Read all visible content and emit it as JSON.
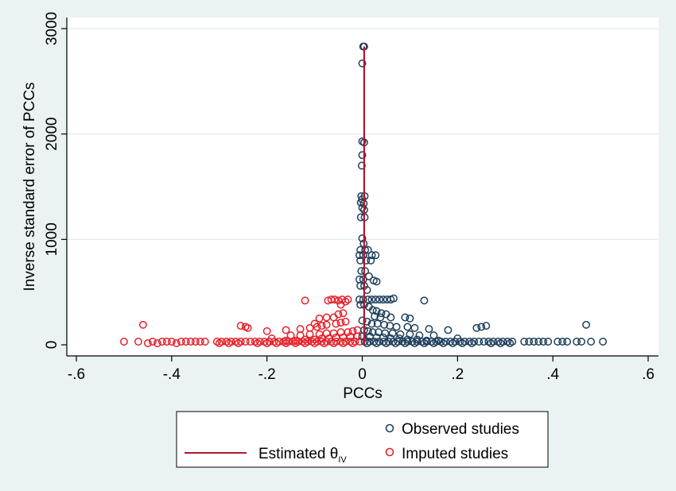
{
  "chart_data": {
    "type": "scatter",
    "title": "",
    "xlabel": "PCCs",
    "ylabel": "Inverse standard error of PCCs",
    "xlim": [
      -0.6,
      0.6
    ],
    "ylim": [
      0,
      3000
    ],
    "x_ticks": [
      -0.6,
      -0.4,
      -0.2,
      0,
      0.2,
      0.4,
      0.6
    ],
    "x_tick_labels": [
      "-.6",
      "-.4",
      "-.2",
      "0",
      ".2",
      ".4",
      ".6"
    ],
    "y_ticks": [
      0,
      1000,
      2000,
      3000
    ],
    "y_tick_labels": [
      "0",
      "1000",
      "2000",
      "3000"
    ],
    "grid": "horizontal",
    "legend_position": "bottom",
    "estimate_line": {
      "name": "Estimated θ",
      "subscript": "IV",
      "x": 0.004,
      "y_range": [
        0,
        2830
      ],
      "color": "#b0192f"
    },
    "series": [
      {
        "name": "Observed studies",
        "color": "#1f3f5b",
        "marker": "hollow-circle",
        "points": [
          [
            0.002,
            2830
          ],
          [
            0.004,
            2830
          ],
          [
            0.0,
            2670
          ],
          [
            0.0,
            1930
          ],
          [
            0.004,
            1920
          ],
          [
            0.0,
            1800
          ],
          [
            -0.001,
            1700
          ],
          [
            -0.002,
            1410
          ],
          [
            0.005,
            1410
          ],
          [
            0.0,
            1380
          ],
          [
            -0.003,
            1350
          ],
          [
            0.003,
            1340
          ],
          [
            0.0,
            1300
          ],
          [
            0.004,
            1280
          ],
          [
            -0.003,
            1210
          ],
          [
            0.005,
            1210
          ],
          [
            0.0,
            1010
          ],
          [
            0.003,
            960
          ],
          [
            -0.004,
            900
          ],
          [
            0.006,
            900
          ],
          [
            0.012,
            900
          ],
          [
            -0.006,
            850
          ],
          [
            0.002,
            850
          ],
          [
            0.02,
            850
          ],
          [
            0.028,
            850
          ],
          [
            -0.004,
            800
          ],
          [
            0.008,
            800
          ],
          [
            0.018,
            800
          ],
          [
            -0.002,
            700
          ],
          [
            0.006,
            700
          ],
          [
            0.014,
            650
          ],
          [
            -0.006,
            620
          ],
          [
            0.002,
            620
          ],
          [
            0.024,
            610
          ],
          [
            0.03,
            600
          ],
          [
            -0.004,
            560
          ],
          [
            0.004,
            560
          ],
          [
            0.01,
            520
          ],
          [
            -0.006,
            430
          ],
          [
            0.002,
            430
          ],
          [
            0.012,
            430
          ],
          [
            0.02,
            430
          ],
          [
            0.028,
            430
          ],
          [
            0.036,
            430
          ],
          [
            0.044,
            430
          ],
          [
            0.052,
            430
          ],
          [
            0.06,
            430
          ],
          [
            0.066,
            440
          ],
          [
            0.13,
            420
          ],
          [
            -0.004,
            380
          ],
          [
            0.004,
            380
          ],
          [
            0.014,
            360
          ],
          [
            0.022,
            330
          ],
          [
            0.03,
            320
          ],
          [
            0.04,
            300
          ],
          [
            0.05,
            290
          ],
          [
            0.026,
            270
          ],
          [
            0.038,
            260
          ],
          [
            0.06,
            260
          ],
          [
            0.09,
            260
          ],
          [
            0.1,
            250
          ],
          [
            0.0,
            230
          ],
          [
            0.01,
            220
          ],
          [
            0.02,
            200
          ],
          [
            0.032,
            200
          ],
          [
            0.046,
            190
          ],
          [
            0.058,
            180
          ],
          [
            0.072,
            170
          ],
          [
            0.095,
            170
          ],
          [
            0.11,
            160
          ],
          [
            0.14,
            150
          ],
          [
            0.18,
            140
          ],
          [
            0.24,
            160
          ],
          [
            0.25,
            170
          ],
          [
            0.26,
            180
          ],
          [
            0.47,
            190
          ],
          [
            0.004,
            140
          ],
          [
            0.012,
            130
          ],
          [
            0.022,
            120
          ],
          [
            0.034,
            120
          ],
          [
            0.048,
            110
          ],
          [
            0.064,
            110
          ],
          [
            0.08,
            100
          ],
          [
            0.1,
            100
          ],
          [
            0.12,
            90
          ],
          [
            0.15,
            90
          ],
          [
            0.0,
            80
          ],
          [
            0.016,
            80
          ],
          [
            0.03,
            70
          ],
          [
            0.044,
            70
          ],
          [
            0.06,
            60
          ],
          [
            0.078,
            60
          ],
          [
            0.095,
            50
          ],
          [
            0.115,
            50
          ],
          [
            0.135,
            40
          ],
          [
            0.16,
            40
          ],
          [
            0.2,
            60
          ],
          [
            0.005,
            30
          ],
          [
            0.015,
            30
          ],
          [
            0.025,
            30
          ],
          [
            0.035,
            30
          ],
          [
            0.045,
            30
          ],
          [
            0.055,
            30
          ],
          [
            0.065,
            30
          ],
          [
            0.075,
            30
          ],
          [
            0.085,
            30
          ],
          [
            0.095,
            30
          ],
          [
            0.105,
            30
          ],
          [
            0.115,
            30
          ],
          [
            0.125,
            30
          ],
          [
            0.135,
            30
          ],
          [
            0.145,
            30
          ],
          [
            0.155,
            30
          ],
          [
            0.165,
            30
          ],
          [
            0.175,
            30
          ],
          [
            0.185,
            30
          ],
          [
            0.195,
            30
          ],
          [
            0.205,
            30
          ],
          [
            0.215,
            30
          ],
          [
            0.225,
            30
          ],
          [
            0.235,
            30
          ],
          [
            0.245,
            30
          ],
          [
            0.255,
            30
          ],
          [
            0.265,
            30
          ],
          [
            0.275,
            30
          ],
          [
            0.285,
            30
          ],
          [
            0.295,
            30
          ],
          [
            0.305,
            30
          ],
          [
            0.315,
            30
          ],
          [
            0.34,
            30
          ],
          [
            0.35,
            30
          ],
          [
            0.36,
            30
          ],
          [
            0.37,
            30
          ],
          [
            0.38,
            30
          ],
          [
            0.39,
            30
          ],
          [
            0.41,
            30
          ],
          [
            0.42,
            30
          ],
          [
            0.43,
            30
          ],
          [
            0.45,
            30
          ],
          [
            0.46,
            30
          ],
          [
            0.48,
            30
          ],
          [
            0.505,
            30
          ],
          [
            0.01,
            15
          ],
          [
            0.03,
            15
          ],
          [
            0.05,
            15
          ],
          [
            0.07,
            15
          ],
          [
            0.09,
            15
          ],
          [
            0.11,
            15
          ],
          [
            0.13,
            15
          ],
          [
            0.15,
            15
          ],
          [
            0.17,
            15
          ],
          [
            0.19,
            15
          ],
          [
            0.21,
            15
          ],
          [
            0.23,
            15
          ],
          [
            0.27,
            15
          ],
          [
            0.29,
            15
          ],
          [
            0.31,
            15
          ]
        ]
      },
      {
        "name": "Imputed studies",
        "color": "#e8202a",
        "marker": "hollow-circle",
        "points": [
          [
            -0.03,
            430
          ],
          [
            -0.035,
            410
          ],
          [
            -0.042,
            430
          ],
          [
            -0.05,
            420
          ],
          [
            -0.058,
            430
          ],
          [
            -0.065,
            430
          ],
          [
            -0.072,
            420
          ],
          [
            -0.12,
            420
          ],
          [
            -0.045,
            380
          ],
          [
            -0.04,
            300
          ],
          [
            -0.05,
            290
          ],
          [
            -0.06,
            260
          ],
          [
            -0.075,
            260
          ],
          [
            -0.09,
            250
          ],
          [
            -0.1,
            200
          ],
          [
            -0.035,
            220
          ],
          [
            -0.045,
            210
          ],
          [
            -0.055,
            200
          ],
          [
            -0.075,
            190
          ],
          [
            -0.085,
            180
          ],
          [
            -0.095,
            170
          ],
          [
            -0.11,
            160
          ],
          [
            -0.13,
            150
          ],
          [
            -0.16,
            140
          ],
          [
            -0.2,
            130
          ],
          [
            -0.24,
            160
          ],
          [
            -0.245,
            170
          ],
          [
            -0.255,
            180
          ],
          [
            -0.46,
            190
          ],
          [
            -0.01,
            140
          ],
          [
            -0.02,
            130
          ],
          [
            -0.03,
            120
          ],
          [
            -0.045,
            120
          ],
          [
            -0.06,
            110
          ],
          [
            -0.075,
            110
          ],
          [
            -0.09,
            100
          ],
          [
            -0.11,
            100
          ],
          [
            -0.13,
            90
          ],
          [
            -0.15,
            90
          ],
          [
            -0.01,
            80
          ],
          [
            -0.025,
            80
          ],
          [
            -0.04,
            70
          ],
          [
            -0.055,
            70
          ],
          [
            -0.07,
            60
          ],
          [
            -0.085,
            60
          ],
          [
            -0.1,
            50
          ],
          [
            -0.12,
            50
          ],
          [
            -0.14,
            40
          ],
          [
            -0.16,
            40
          ],
          [
            -0.19,
            60
          ],
          [
            -0.005,
            30
          ],
          [
            -0.015,
            30
          ],
          [
            -0.025,
            30
          ],
          [
            -0.035,
            30
          ],
          [
            -0.045,
            30
          ],
          [
            -0.055,
            30
          ],
          [
            -0.065,
            30
          ],
          [
            -0.075,
            30
          ],
          [
            -0.085,
            30
          ],
          [
            -0.095,
            30
          ],
          [
            -0.105,
            30
          ],
          [
            -0.115,
            30
          ],
          [
            -0.125,
            30
          ],
          [
            -0.135,
            30
          ],
          [
            -0.145,
            30
          ],
          [
            -0.155,
            30
          ],
          [
            -0.165,
            30
          ],
          [
            -0.175,
            30
          ],
          [
            -0.185,
            30
          ],
          [
            -0.195,
            30
          ],
          [
            -0.205,
            30
          ],
          [
            -0.215,
            30
          ],
          [
            -0.225,
            30
          ],
          [
            -0.235,
            30
          ],
          [
            -0.245,
            30
          ],
          [
            -0.255,
            30
          ],
          [
            -0.265,
            30
          ],
          [
            -0.275,
            30
          ],
          [
            -0.285,
            30
          ],
          [
            -0.295,
            30
          ],
          [
            -0.305,
            30
          ],
          [
            -0.33,
            30
          ],
          [
            -0.34,
            30
          ],
          [
            -0.35,
            30
          ],
          [
            -0.36,
            30
          ],
          [
            -0.37,
            30
          ],
          [
            -0.38,
            30
          ],
          [
            -0.4,
            30
          ],
          [
            -0.41,
            30
          ],
          [
            -0.42,
            30
          ],
          [
            -0.44,
            30
          ],
          [
            -0.47,
            30
          ],
          [
            -0.5,
            30
          ],
          [
            -0.02,
            15
          ],
          [
            -0.04,
            15
          ],
          [
            -0.06,
            15
          ],
          [
            -0.08,
            15
          ],
          [
            -0.1,
            15
          ],
          [
            -0.12,
            15
          ],
          [
            -0.14,
            15
          ],
          [
            -0.16,
            15
          ],
          [
            -0.18,
            15
          ],
          [
            -0.2,
            15
          ],
          [
            -0.22,
            15
          ],
          [
            -0.26,
            15
          ],
          [
            -0.28,
            15
          ],
          [
            -0.3,
            15
          ],
          [
            -0.45,
            15
          ],
          [
            -0.43,
            15
          ],
          [
            -0.39,
            15
          ]
        ]
      }
    ]
  }
}
